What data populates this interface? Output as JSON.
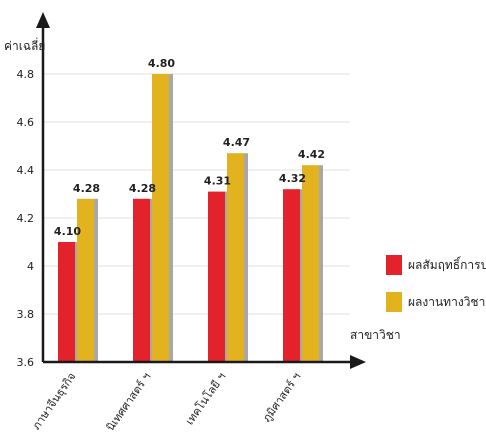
{
  "chart_data": {
    "type": "bar",
    "ylabel": "ค่าเฉลี่ย",
    "xlabel": "สาขาวิชา",
    "categories": [
      "ภาษาจีนธุรกิจ",
      "นิเทศศาสตร์ ฯ",
      "เทคโนโลยี ฯ",
      "ภูมิศาสตร์ ฯ"
    ],
    "series": [
      {
        "name": "ผลสัมฤทธิ์การปฏิบัติ",
        "color": "#e3222b",
        "values": [
          4.1,
          4.28,
          4.31,
          4.32
        ]
      },
      {
        "name": "ผลงานทางวิชาการ",
        "color": "#e3b21f",
        "values": [
          4.28,
          4.8,
          4.47,
          4.42
        ]
      }
    ],
    "value_labels": [
      [
        "4.10",
        "4.28",
        "4.31",
        "4.32"
      ],
      [
        "4.28",
        "4.80",
        "4.47",
        "4.42"
      ]
    ],
    "ylim": [
      3.6,
      5.0
    ],
    "yticks": [
      3.6,
      3.8,
      4,
      4.2,
      4.4,
      4.6,
      4.8
    ],
    "ytick_labels": [
      "3.6",
      "3.8",
      "4",
      "4.2",
      "4.4",
      "4.6",
      "4.8"
    ],
    "grid": true,
    "legend_position": "right"
  }
}
